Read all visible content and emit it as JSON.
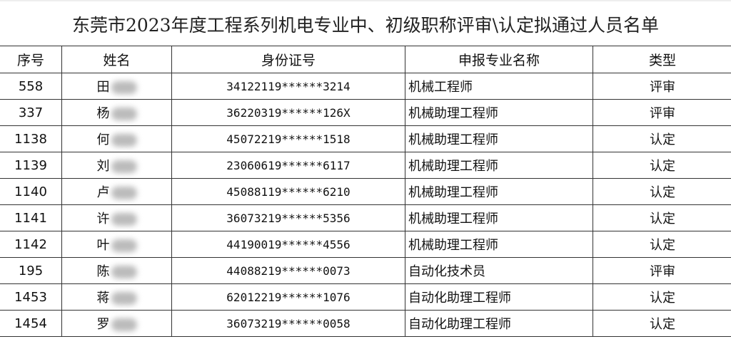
{
  "title": "东莞市2023年度工程系列机电专业中、初级职称评审\\认定拟通过人员名单",
  "headers": [
    "序号",
    "姓名",
    "身份证号",
    "申报专业名称",
    "类型"
  ],
  "rows": [
    {
      "no": "558",
      "surname": "田",
      "id": "34122119******3214",
      "spec": "机械工程师",
      "type": "评审"
    },
    {
      "no": "337",
      "surname": "杨",
      "id": "36220319******126X",
      "spec": "机械助理工程师",
      "type": "评审"
    },
    {
      "no": "1138",
      "surname": "何",
      "id": "45072219******1518",
      "spec": "机械助理工程师",
      "type": "认定"
    },
    {
      "no": "1139",
      "surname": "刘",
      "id": "23060619******6117",
      "spec": "机械助理工程师",
      "type": "认定"
    },
    {
      "no": "1140",
      "surname": "卢",
      "id": "45088119******6210",
      "spec": "机械助理工程师",
      "type": "认定"
    },
    {
      "no": "1141",
      "surname": "许",
      "id": "36073219******5356",
      "spec": "机械助理工程师",
      "type": "认定"
    },
    {
      "no": "1142",
      "surname": "叶",
      "id": "44190019******4556",
      "spec": "机械助理工程师",
      "type": "认定"
    },
    {
      "no": "195",
      "surname": "陈",
      "id": "44088219******0073",
      "spec": "自动化技术员",
      "type": "评审"
    },
    {
      "no": "1453",
      "surname": "蒋",
      "id": "62012219******1076",
      "spec": "自动化助理工程师",
      "type": "认定"
    },
    {
      "no": "1454",
      "surname": "罗",
      "id": "36073219******0058",
      "spec": "自动化助理工程师",
      "type": "认定"
    }
  ]
}
